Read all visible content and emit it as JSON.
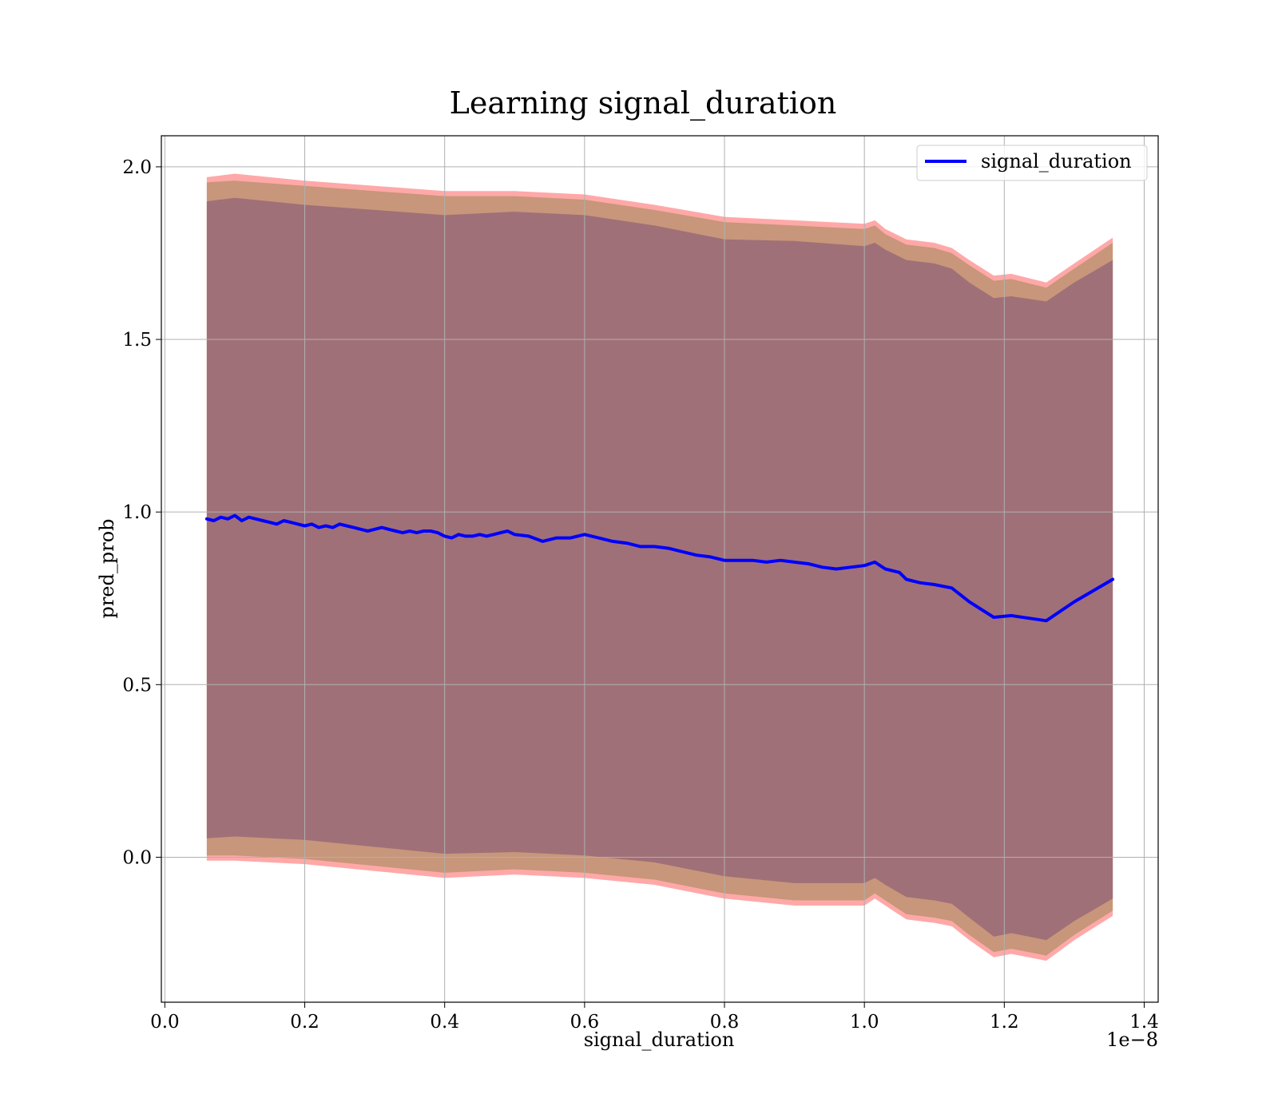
{
  "chart_data": {
    "type": "line",
    "title": "Learning signal_duration",
    "xlabel": "signal_duration",
    "ylabel": "pred_prob",
    "x_offset_label": "1e−8",
    "xlim": [
      -0.005,
      1.42
    ],
    "ylim": [
      -0.42,
      2.09
    ],
    "x_unit_multiplier": 1e-08,
    "xticks": [
      0.0,
      0.2,
      0.4,
      0.6,
      0.8,
      1.0,
      1.2,
      1.4
    ],
    "xtick_labels": [
      "0.0",
      "0.2",
      "0.4",
      "0.6",
      "0.8",
      "1.0",
      "1.2",
      "1.4"
    ],
    "yticks": [
      0.0,
      0.5,
      1.0,
      1.5,
      2.0
    ],
    "ytick_labels": [
      "0.0",
      "0.5",
      "1.0",
      "1.5",
      "2.0"
    ],
    "grid": true,
    "legend": {
      "position": "top-right",
      "entries": [
        "signal_duration"
      ]
    },
    "colors": {
      "line": "#0000ff",
      "outer_band": "#ff9999",
      "middle_band": "#c8967a",
      "inner_band": "#a07078",
      "grid": "#b0b0b0"
    },
    "series": [
      {
        "name": "signal_duration",
        "x": [
          0.06,
          0.07,
          0.08,
          0.09,
          0.1,
          0.11,
          0.12,
          0.13,
          0.14,
          0.15,
          0.16,
          0.17,
          0.18,
          0.19,
          0.2,
          0.21,
          0.22,
          0.23,
          0.24,
          0.25,
          0.26,
          0.27,
          0.28,
          0.29,
          0.3,
          0.31,
          0.32,
          0.33,
          0.34,
          0.35,
          0.36,
          0.37,
          0.38,
          0.39,
          0.4,
          0.41,
          0.42,
          0.43,
          0.44,
          0.45,
          0.46,
          0.47,
          0.48,
          0.49,
          0.5,
          0.52,
          0.54,
          0.56,
          0.58,
          0.6,
          0.62,
          0.64,
          0.66,
          0.68,
          0.7,
          0.72,
          0.74,
          0.76,
          0.78,
          0.8,
          0.82,
          0.84,
          0.86,
          0.88,
          0.9,
          0.92,
          0.94,
          0.96,
          0.98,
          1.0,
          1.015,
          1.03,
          1.05,
          1.06,
          1.08,
          1.1,
          1.125,
          1.15,
          1.185,
          1.21,
          1.26,
          1.3,
          1.355
        ],
        "y": [
          0.98,
          0.975,
          0.985,
          0.98,
          0.99,
          0.975,
          0.985,
          0.98,
          0.975,
          0.97,
          0.965,
          0.975,
          0.97,
          0.965,
          0.96,
          0.965,
          0.955,
          0.96,
          0.955,
          0.965,
          0.96,
          0.955,
          0.95,
          0.945,
          0.95,
          0.955,
          0.95,
          0.945,
          0.94,
          0.945,
          0.94,
          0.945,
          0.945,
          0.94,
          0.93,
          0.925,
          0.935,
          0.93,
          0.93,
          0.935,
          0.93,
          0.935,
          0.94,
          0.945,
          0.935,
          0.93,
          0.915,
          0.925,
          0.925,
          0.935,
          0.925,
          0.915,
          0.91,
          0.9,
          0.9,
          0.895,
          0.885,
          0.875,
          0.87,
          0.86,
          0.86,
          0.86,
          0.855,
          0.86,
          0.855,
          0.85,
          0.84,
          0.835,
          0.84,
          0.845,
          0.855,
          0.835,
          0.825,
          0.805,
          0.795,
          0.79,
          0.78,
          0.74,
          0.695,
          0.7,
          0.685,
          0.74,
          0.805
        ]
      }
    ],
    "bands": [
      {
        "name": "outer",
        "x": [
          0.06,
          0.1,
          0.2,
          0.3,
          0.4,
          0.5,
          0.6,
          0.7,
          0.8,
          0.9,
          1.0,
          1.015,
          1.03,
          1.06,
          1.1,
          1.125,
          1.15,
          1.185,
          1.21,
          1.26,
          1.3,
          1.355
        ],
        "upper": [
          1.97,
          1.98,
          1.96,
          1.945,
          1.93,
          1.93,
          1.92,
          1.89,
          1.855,
          1.845,
          1.835,
          1.845,
          1.82,
          1.79,
          1.78,
          1.765,
          1.73,
          1.685,
          1.69,
          1.665,
          1.72,
          1.795
        ],
        "lower": [
          -0.01,
          -0.01,
          -0.02,
          -0.04,
          -0.06,
          -0.05,
          -0.06,
          -0.08,
          -0.12,
          -0.14,
          -0.14,
          -0.12,
          -0.14,
          -0.18,
          -0.19,
          -0.2,
          -0.24,
          -0.29,
          -0.28,
          -0.3,
          -0.24,
          -0.17
        ]
      },
      {
        "name": "middle",
        "x": [
          0.06,
          0.1,
          0.2,
          0.3,
          0.4,
          0.5,
          0.6,
          0.7,
          0.8,
          0.9,
          1.0,
          1.015,
          1.03,
          1.06,
          1.1,
          1.125,
          1.15,
          1.185,
          1.21,
          1.26,
          1.3,
          1.355
        ],
        "upper": [
          1.955,
          1.96,
          1.945,
          1.93,
          1.915,
          1.915,
          1.905,
          1.875,
          1.84,
          1.83,
          1.82,
          1.83,
          1.805,
          1.775,
          1.765,
          1.75,
          1.715,
          1.67,
          1.675,
          1.65,
          1.705,
          1.78
        ],
        "lower": [
          0.005,
          0.005,
          -0.005,
          -0.025,
          -0.045,
          -0.035,
          -0.045,
          -0.065,
          -0.105,
          -0.125,
          -0.125,
          -0.105,
          -0.125,
          -0.165,
          -0.175,
          -0.185,
          -0.225,
          -0.275,
          -0.265,
          -0.285,
          -0.225,
          -0.155
        ]
      },
      {
        "name": "inner",
        "x": [
          0.06,
          0.1,
          0.2,
          0.3,
          0.4,
          0.5,
          0.6,
          0.7,
          0.8,
          0.9,
          1.0,
          1.015,
          1.03,
          1.06,
          1.1,
          1.125,
          1.15,
          1.185,
          1.21,
          1.26,
          1.3,
          1.355
        ],
        "upper": [
          1.9,
          1.91,
          1.89,
          1.875,
          1.86,
          1.87,
          1.86,
          1.83,
          1.79,
          1.785,
          1.77,
          1.78,
          1.76,
          1.73,
          1.72,
          1.705,
          1.665,
          1.62,
          1.625,
          1.61,
          1.665,
          1.73
        ],
        "lower": [
          0.055,
          0.06,
          0.05,
          0.03,
          0.01,
          0.015,
          0.005,
          -0.015,
          -0.055,
          -0.075,
          -0.075,
          -0.06,
          -0.08,
          -0.115,
          -0.125,
          -0.135,
          -0.175,
          -0.23,
          -0.22,
          -0.24,
          -0.185,
          -0.12
        ]
      }
    ]
  }
}
